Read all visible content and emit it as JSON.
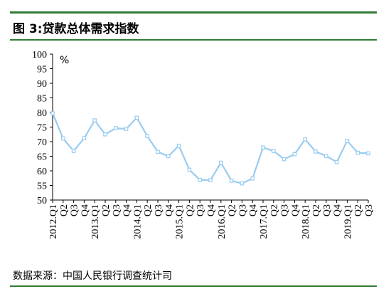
{
  "title": "图 3:贷款总体需求指数",
  "source": "数据来源：中国人民银行调查统计司",
  "colors": {
    "rule": "#2e7d32",
    "line": "#99ccf0",
    "marker_fill": "#ffffff",
    "axis": "#000000"
  },
  "chart_data": {
    "type": "line",
    "title": "图 3:贷款总体需求指数",
    "unit_label": "%",
    "ylim": [
      50,
      100
    ],
    "y_ticks": [
      50,
      55,
      60,
      65,
      70,
      75,
      80,
      85,
      90,
      95,
      100
    ],
    "grid": false,
    "categories": [
      "2012.Q1",
      "Q2",
      "Q3",
      "Q4",
      "2013.Q1",
      "Q2",
      "Q3",
      "Q4",
      "2014.Q1",
      "Q2",
      "Q3",
      "Q4",
      "2015.Q1",
      "Q2",
      "Q3",
      "Q4",
      "2016.Q1",
      "Q2",
      "Q3",
      "Q4",
      "2017.Q1",
      "Q2",
      "Q3",
      "Q4",
      "2018.Q1",
      "Q2",
      "Q3",
      "Q4",
      "2019.Q1",
      "Q2",
      "Q3"
    ],
    "series": [
      {
        "values": [
          79.7,
          71.1,
          66.8,
          71.2,
          77.3,
          72.5,
          74.6,
          74.4,
          78.2,
          71.9,
          66.5,
          65.0,
          68.6,
          60.4,
          56.9,
          56.8,
          62.8,
          56.6,
          55.7,
          57.4,
          68.0,
          66.8,
          64.0,
          65.7,
          70.8,
          66.6,
          65.1,
          63.0,
          70.3,
          66.2,
          66.0
        ]
      }
    ]
  }
}
